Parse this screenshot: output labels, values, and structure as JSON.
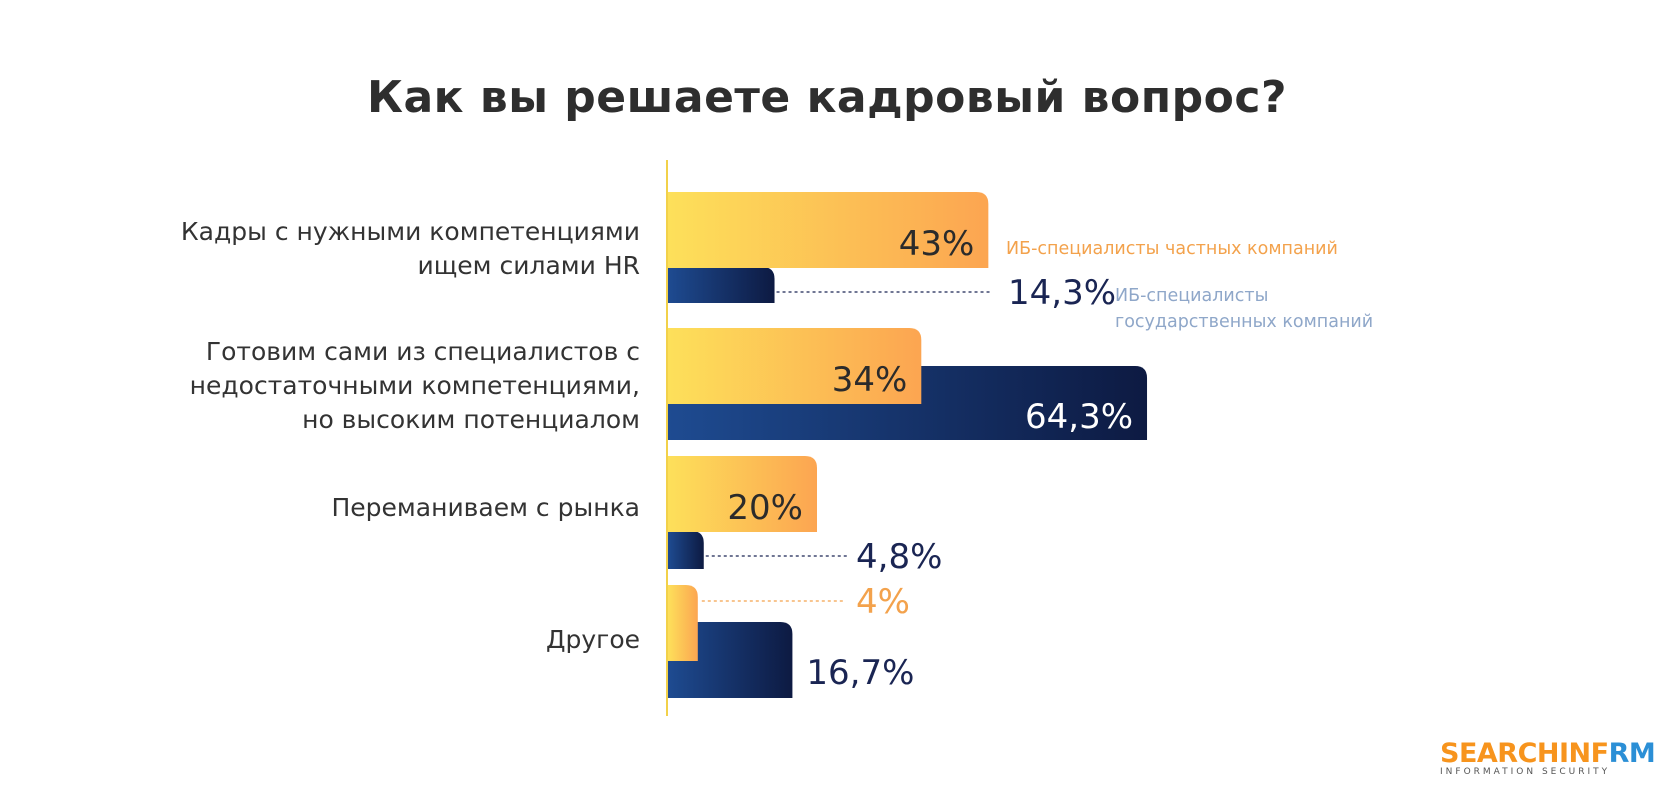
{
  "chart_data": {
    "type": "bar",
    "orientation": "horizontal",
    "title": "Как вы решаете кадровый вопрос?",
    "categories": [
      [
        "Кадры с нужными компетенциями",
        "ищем силами HR"
      ],
      [
        "Готовим сами из специалистов с",
        "недостаточными компетенциями,",
        "но высоким потенциалом"
      ],
      [
        "Переманиваем с рынка"
      ],
      [
        "Другое"
      ]
    ],
    "series": [
      {
        "name": "ИБ-специалисты частных компаний",
        "values": [
          43,
          34,
          20,
          4
        ],
        "value_labels": [
          "43%",
          "34%",
          "20%",
          "4%"
        ],
        "color_start": "#fde05a",
        "color_end": "#fca551"
      },
      {
        "name": "ИБ-специалисты государственных компаний",
        "name_lines": [
          "ИБ-специалисты",
          "государственных компаний"
        ],
        "values": [
          14.3,
          64.3,
          4.8,
          16.7
        ],
        "value_labels": [
          "14,3%",
          "64,3%",
          "4,8%",
          "16,7%"
        ],
        "color_start": "#1e4b91",
        "color_end": "#0d1a42"
      }
    ],
    "xlim": [
      0,
      70
    ],
    "legend_placement": "inline-right-of-first-group",
    "colors": {
      "axis": "#f2d14a",
      "private_legend_text": "#f3a24c",
      "gov_legend_text": "#8fa7c9",
      "gov_value_text": "#1a2553",
      "label_text": "#333333"
    }
  },
  "logo": {
    "part1": "SEARCHIN",
    "part2": "F",
    "part3": "RM",
    "tagline": "INFORMATION SECURITY"
  }
}
